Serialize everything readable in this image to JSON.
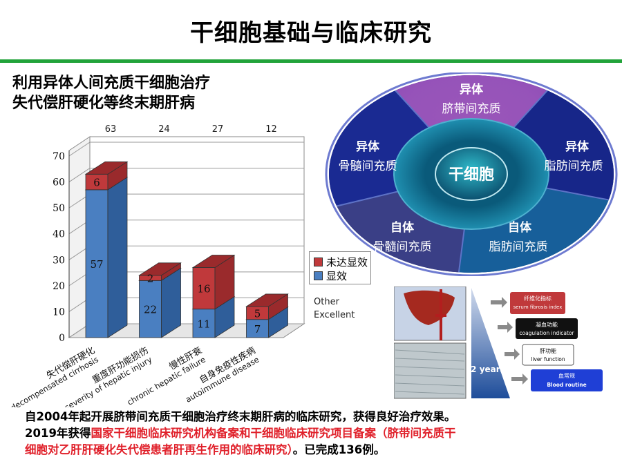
{
  "header": {
    "title": "干细胞基础与临床研究"
  },
  "subtitle": {
    "line1": "利用异体人间充质干细胞治疗",
    "line2": "失代偿肝硬化等终末期肝病"
  },
  "chart_data": {
    "type": "bar",
    "stacked": true,
    "categories_cn": [
      "失代偿肝硬化",
      "重度肝功能损伤",
      "慢性肝衰",
      "自身免疫性疾病"
    ],
    "categories_en": [
      "decompensated cirrhosis",
      "severity of hepatic injury",
      "chronic hepatic failure",
      "autoimmune disease"
    ],
    "totals": [
      "63",
      "24",
      "27",
      "12"
    ],
    "series": [
      {
        "name": "显效",
        "values": [
          57,
          22,
          11,
          7
        ],
        "color": "#4a7fc1"
      },
      {
        "name": "未达显效",
        "values": [
          6,
          2,
          16,
          5
        ],
        "color": "#c0393b"
      }
    ],
    "ylim": [
      0,
      70
    ],
    "yticks": [
      "0",
      "10",
      "20",
      "30",
      "40",
      "50",
      "60",
      "70"
    ],
    "legend_placement": "right",
    "legend_en": [
      "Other",
      "Excellent"
    ]
  },
  "donut": {
    "center": "干细胞",
    "segments": [
      {
        "line1": "异体",
        "line2": "脐带间充质"
      },
      {
        "line1": "异体",
        "line2": "脂肪间充质"
      },
      {
        "line1": "自体",
        "line2": "脂肪间充质"
      },
      {
        "line1": "自体",
        "line2": "骨髓间充质"
      },
      {
        "line1": "异体",
        "line2": "骨髓间充质"
      }
    ]
  },
  "timeline": {
    "period": "2 years",
    "items": [
      {
        "cn": "纤维化指标",
        "en": "serum fibrosis index",
        "color": "#c0393b"
      },
      {
        "cn": "凝血功能",
        "en": "coagulation indicator",
        "color": "#111111"
      },
      {
        "cn": "肝功能",
        "en": "liver function",
        "color": "#ffffff"
      },
      {
        "cn": "血常规",
        "en": "Blood routine",
        "color": "#1f3fd6"
      }
    ]
  },
  "footer": {
    "line1": "自2004年起开展脐带间充质干细胞治疗终末期肝病的临床研究，获得良好治疗效果。",
    "line2_a": "2019年获得",
    "line2_b": "国家干细胞临床研究机构备案和干细胞临床研究项目备案（脐带间充质干",
    "line3_a": "细胞对乙肝肝硬化失代偿患者肝再生作用的临床研究）",
    "line3_b": "。已完成136例。"
  }
}
